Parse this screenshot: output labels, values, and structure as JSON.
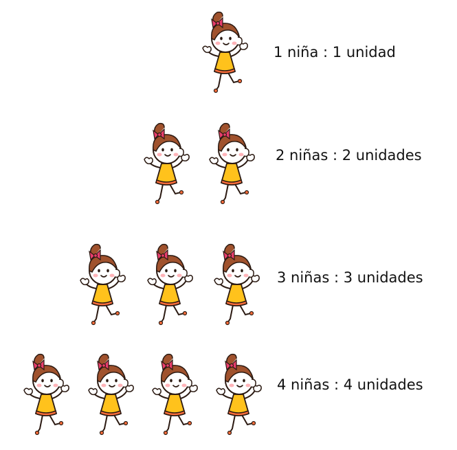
{
  "colors": {
    "hair": "#a0522d",
    "bow": "#e83e6c",
    "dress": "#ffc21c",
    "dress_trim": "#ff6f3c",
    "skin": "#ffffff",
    "outline": "#2b1a12",
    "cheek": "#ffb3b8"
  },
  "rows": [
    {
      "count": 1,
      "label": "1 niña : 1 unidad",
      "icon": "girl-icon"
    },
    {
      "count": 2,
      "label": "2 niñas : 2 unidades",
      "icon": "girl-icon"
    },
    {
      "count": 3,
      "label": "3 niñas : 3 unidades",
      "icon": "girl-icon"
    },
    {
      "count": 4,
      "label": "4 niñas : 4 unidades",
      "icon": "girl-icon"
    }
  ]
}
